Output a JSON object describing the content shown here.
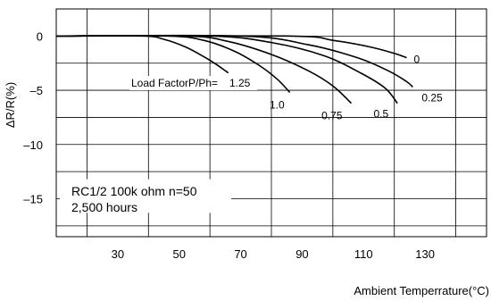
{
  "chart_data": {
    "type": "line",
    "xlabel": "Ambient Temperrature(°C)",
    "ylabel": "ΔR/R(%)",
    "xlim": [
      10,
      150
    ],
    "ylim": [
      -18.5,
      2.5
    ],
    "xticks": [
      30,
      50,
      70,
      90,
      110,
      130
    ],
    "xtick_labels": [
      "30",
      "50",
      "70",
      "90",
      "110",
      "130"
    ],
    "yticks": [
      0,
      -5,
      -10,
      -15
    ],
    "ytick_labels": [
      "0",
      "–5",
      "–10",
      "–15"
    ],
    "grid": true,
    "load_factor_prefix": "Load FactorP/Ph=",
    "annotation_lines": [
      "RC1/2 100k ohm n=50",
      "2,500 hours"
    ],
    "series": [
      {
        "name": "1.25",
        "x": [
          10,
          38,
          45,
          52,
          58,
          62,
          66
        ],
        "y": [
          0,
          0,
          -0.3,
          -1.0,
          -1.9,
          -2.6,
          -3.4
        ]
      },
      {
        "name": "1.0",
        "x": [
          10,
          46,
          58,
          68,
          76,
          82,
          86
        ],
        "y": [
          0,
          0,
          -0.4,
          -1.4,
          -2.7,
          -4.0,
          -5.2
        ]
      },
      {
        "name": "0.75",
        "x": [
          10,
          52,
          66,
          80,
          92,
          100,
          106
        ],
        "y": [
          0,
          0,
          -0.5,
          -1.7,
          -3.2,
          -4.6,
          -6.2
        ]
      },
      {
        "name": "0.5",
        "x": [
          10,
          60,
          80,
          97,
          109,
          117,
          121
        ],
        "y": [
          0,
          0,
          -0.6,
          -1.8,
          -3.4,
          -4.8,
          -6.2
        ]
      },
      {
        "name": "0.25",
        "x": [
          10,
          70,
          92,
          108,
          118,
          124,
          126
        ],
        "y": [
          0,
          0,
          -0.8,
          -2.0,
          -3.2,
          -4.2,
          -4.7
        ]
      },
      {
        "name": "0",
        "x": [
          10,
          85,
          100,
          112,
          120,
          124
        ],
        "y": [
          0,
          0,
          -0.4,
          -1.0,
          -1.6,
          -2.0
        ]
      }
    ]
  }
}
